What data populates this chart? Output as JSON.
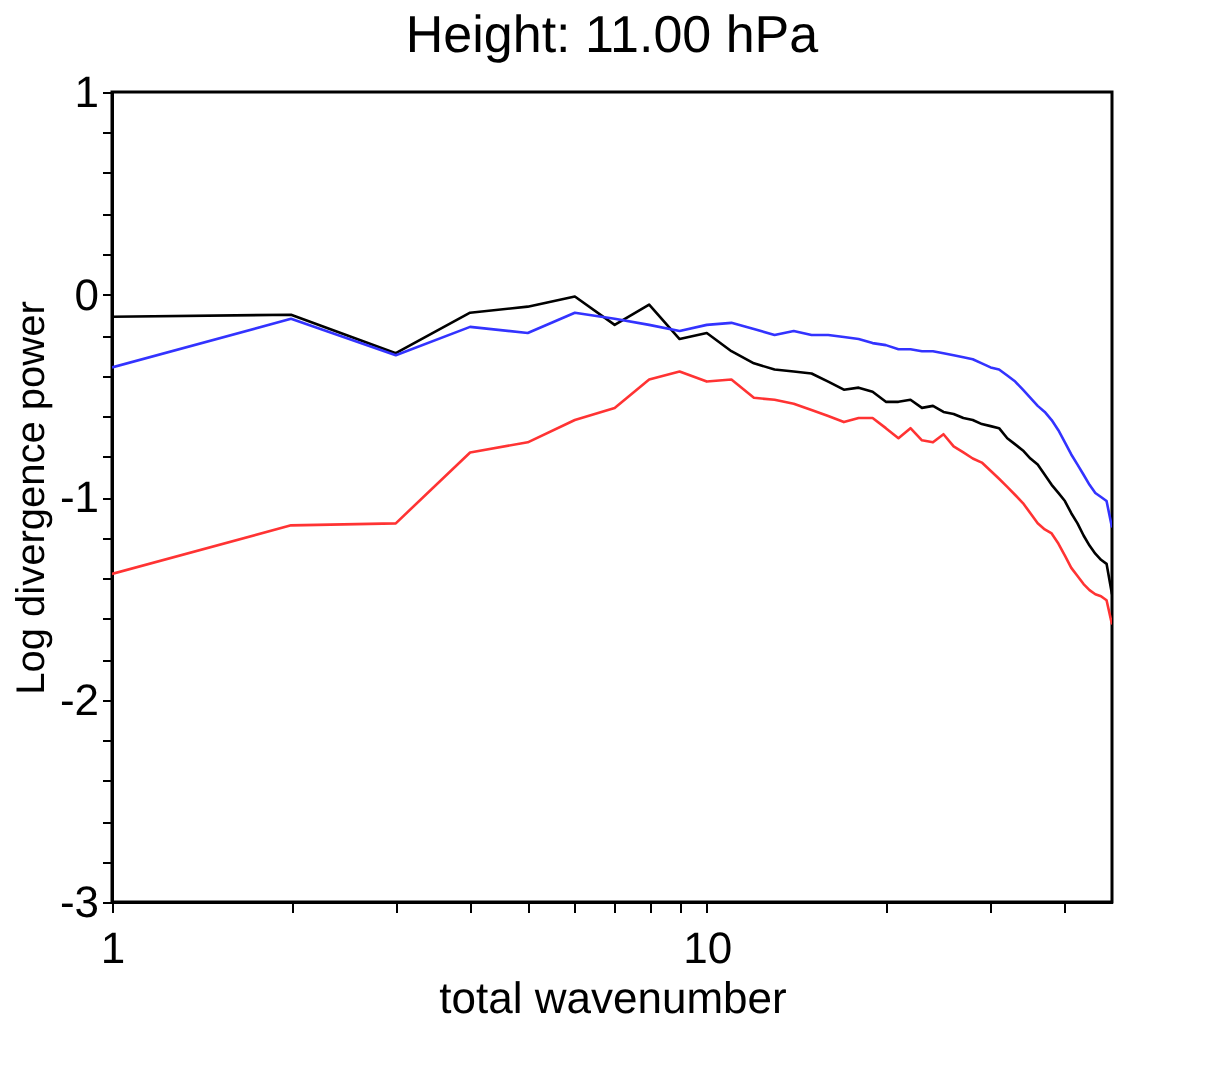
{
  "chart_data": {
    "type": "line",
    "title": "Height:  11.00 hPa",
    "xlabel": "total wavenumber",
    "ylabel": "Log divergence power",
    "log": "x",
    "grid": false,
    "legend": false,
    "marker": "none",
    "line_style": "solid",
    "x": [
      1,
      2,
      3,
      4,
      5,
      6,
      7,
      8,
      9,
      10,
      11,
      12,
      13,
      14,
      15,
      16,
      17,
      18,
      19,
      20,
      21,
      22,
      23,
      24,
      25,
      26,
      27,
      28,
      29,
      30,
      31,
      32,
      33,
      34,
      35,
      36,
      37,
      38,
      39,
      40,
      41,
      42,
      43,
      44,
      45,
      46,
      47,
      48
    ],
    "series": [
      {
        "color": "#000000",
        "values": [
          -0.11,
          -0.1,
          -0.29,
          -0.09,
          -0.06,
          -0.01,
          -0.15,
          -0.05,
          -0.22,
          -0.19,
          -0.28,
          -0.34,
          -0.37,
          -0.38,
          -0.39,
          -0.43,
          -0.47,
          -0.46,
          -0.48,
          -0.53,
          -0.53,
          -0.52,
          -0.56,
          -0.55,
          -0.58,
          -0.59,
          -0.61,
          -0.62,
          -0.64,
          -0.65,
          -0.66,
          -0.71,
          -0.74,
          -0.77,
          -0.81,
          -0.84,
          -0.89,
          -0.94,
          -0.98,
          -1.02,
          -1.08,
          -1.13,
          -1.19,
          -1.24,
          -1.28,
          -1.31,
          -1.33,
          -1.48
        ]
      },
      {
        "color": "#3333ff",
        "values": [
          -0.36,
          -0.12,
          -0.3,
          -0.16,
          -0.19,
          -0.09,
          -0.12,
          -0.15,
          -0.18,
          -0.15,
          -0.14,
          -0.17,
          -0.2,
          -0.18,
          -0.2,
          -0.2,
          -0.21,
          -0.22,
          -0.24,
          -0.25,
          -0.27,
          -0.27,
          -0.28,
          -0.28,
          -0.29,
          -0.3,
          -0.31,
          -0.32,
          -0.34,
          -0.36,
          -0.37,
          -0.4,
          -0.43,
          -0.47,
          -0.51,
          -0.55,
          -0.58,
          -0.62,
          -0.67,
          -0.73,
          -0.79,
          -0.84,
          -0.89,
          -0.94,
          -0.98,
          -1.0,
          -1.02,
          -1.15
        ]
      },
      {
        "color": "#ff3333",
        "values": [
          -1.38,
          -1.14,
          -1.13,
          -0.78,
          -0.73,
          -0.62,
          -0.56,
          -0.42,
          -0.38,
          -0.43,
          -0.42,
          -0.51,
          -0.52,
          -0.54,
          -0.57,
          -0.6,
          -0.63,
          -0.61,
          -0.61,
          -0.66,
          -0.71,
          -0.66,
          -0.72,
          -0.73,
          -0.69,
          -0.75,
          -0.78,
          -0.81,
          -0.83,
          -0.87,
          -0.91,
          -0.95,
          -0.99,
          -1.03,
          -1.08,
          -1.13,
          -1.16,
          -1.18,
          -1.23,
          -1.29,
          -1.35,
          -1.39,
          -1.43,
          -1.46,
          -1.48,
          -1.49,
          -1.51,
          -1.63
        ]
      }
    ],
    "xlim": [
      1,
      48
    ],
    "xticks": [
      1,
      {
        "value": 2,
        "label": null
      },
      {
        "value": 3,
        "label": null
      },
      {
        "value": 4,
        "label": null
      },
      {
        "value": 5,
        "label": null
      },
      {
        "value": 6,
        "label": null
      },
      {
        "value": 7,
        "label": null
      },
      {
        "value": 8,
        "label": null
      },
      {
        "value": 9,
        "label": null
      },
      10,
      {
        "value": 20,
        "label": null
      },
      {
        "value": 30,
        "label": null
      },
      {
        "value": 40,
        "label": null
      }
    ],
    "ylim": [
      -3,
      1
    ],
    "yticks": [
      -3,
      {
        "value": -2.8,
        "label": null
      },
      {
        "value": -2.6,
        "label": null
      },
      {
        "value": -2.4,
        "label": null
      },
      {
        "value": -2.2,
        "label": null
      },
      -2,
      {
        "value": -1.8,
        "label": null
      },
      {
        "value": -1.6,
        "label": null
      },
      {
        "value": -1.4,
        "label": null
      },
      {
        "value": -1.2,
        "label": null
      },
      -1,
      {
        "value": -0.8,
        "label": null
      },
      {
        "value": -0.6,
        "label": null
      },
      {
        "value": -0.4,
        "label": null
      },
      {
        "value": -0.2,
        "label": null
      },
      0,
      {
        "value": 0.2,
        "label": null
      },
      {
        "value": 0.4,
        "label": null
      },
      {
        "value": 0.6,
        "label": null
      },
      {
        "value": 0.8,
        "label": null
      },
      1
    ]
  }
}
